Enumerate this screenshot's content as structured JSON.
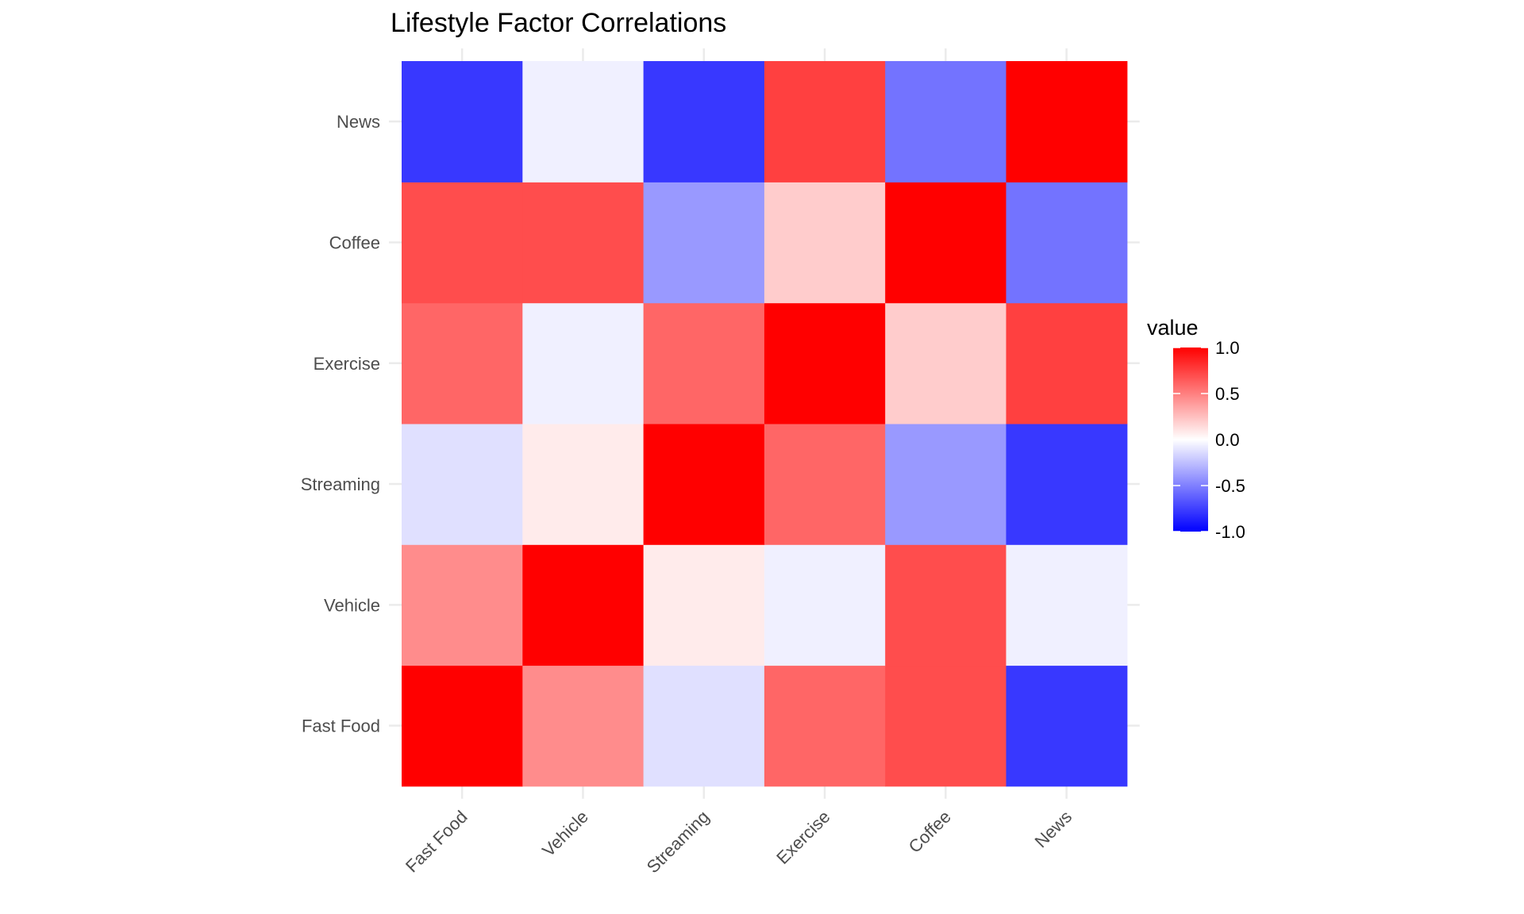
{
  "chart_data": {
    "type": "heatmap",
    "title": "Lifestyle Factor Correlations",
    "xlabel": "",
    "ylabel": "",
    "x_categories": [
      "Fast Food",
      "Vehicle",
      "Streaming",
      "Exercise",
      "Coffee",
      "News"
    ],
    "y_categories": [
      "Fast Food",
      "Vehicle",
      "Streaming",
      "Exercise",
      "Coffee",
      "News"
    ],
    "values": [
      [
        1.0,
        0.45,
        -0.12,
        0.6,
        0.7,
        -0.78
      ],
      [
        0.45,
        1.0,
        0.08,
        -0.06,
        0.7,
        -0.06
      ],
      [
        -0.12,
        0.08,
        1.0,
        0.6,
        -0.4,
        -0.78
      ],
      [
        0.6,
        -0.06,
        0.6,
        1.0,
        0.2,
        0.75
      ],
      [
        0.7,
        0.7,
        -0.4,
        0.2,
        1.0,
        -0.55
      ],
      [
        -0.78,
        -0.06,
        -0.78,
        0.75,
        -0.55,
        1.0
      ]
    ],
    "value_range": [
      -1,
      1
    ],
    "color_scale": {
      "low": "#0000ff",
      "mid": "#ffffff",
      "high": "#ff0000"
    },
    "legend": {
      "title": "value",
      "ticks": [
        1.0,
        0.5,
        0.0,
        -0.5,
        -1.0
      ],
      "tick_labels": [
        "1.0",
        "0.5",
        "0.0",
        "-0.5",
        "-1.0"
      ],
      "position": "right"
    },
    "grid": true
  }
}
